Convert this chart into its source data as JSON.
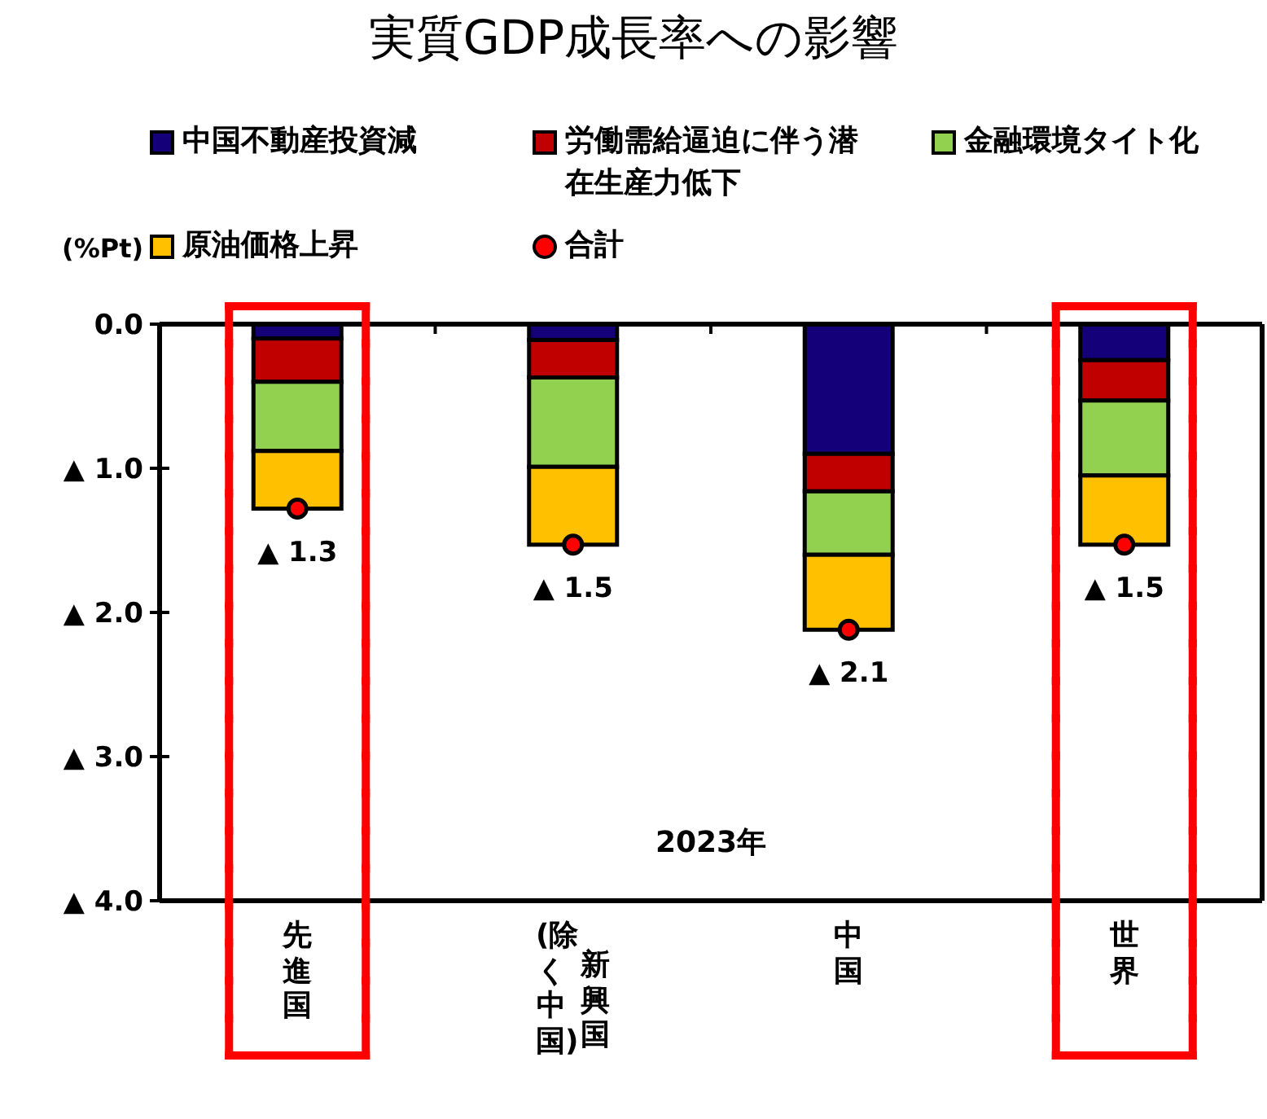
{
  "chart_data": {
    "type": "bar",
    "stacked": true,
    "title": "実質GDP成長率への影響",
    "ylabel": "(%Pt)",
    "categories": [
      "先進国",
      "新興国\n(除く中国)",
      "中国",
      "世界"
    ],
    "series": [
      {
        "name": "中国不動産投資減",
        "color": "#140078",
        "values": [
          -0.1,
          -0.11,
          -0.9,
          -0.25
        ]
      },
      {
        "name": "労働需給逼迫に伴う潜在生産力低下",
        "color": "#c00000",
        "values": [
          -0.3,
          -0.26,
          -0.26,
          -0.28
        ]
      },
      {
        "name": "金融環境タイト化",
        "color": "#92d050",
        "values": [
          -0.48,
          -0.62,
          -0.44,
          -0.52
        ]
      },
      {
        "name": "原油価格上昇",
        "color": "#ffc000",
        "values": [
          -0.4,
          -0.54,
          -0.52,
          -0.48
        ]
      },
      {
        "name": "合計",
        "type": "scatter",
        "marker": "circle",
        "color": "#ff0000",
        "x": [
          "先進国",
          "新興国\n(除く中国)",
          "中国",
          "世界"
        ],
        "values": [
          -1.28,
          -1.53,
          -2.12,
          -1.53
        ]
      }
    ],
    "ylim": [
      -4,
      0
    ],
    "yticks": [
      {
        "value": 0,
        "label": "0.0"
      },
      {
        "value": -1,
        "label": "▲ 1.0"
      },
      {
        "value": -2,
        "label": "▲ 2.0"
      },
      {
        "value": -3,
        "label": "▲ 3.0"
      },
      {
        "value": -4,
        "label": "▲ 4.0"
      }
    ],
    "annotations": [
      "2023年",
      {
        "text": "▲ 1.3",
        "x": "先進国",
        "y": -1.28
      },
      {
        "text": "▲ 1.5",
        "x": "新興国\n(除く中国)",
        "y": -1.53
      },
      {
        "text": "▲ 2.1",
        "x": "中国",
        "y": -2.12
      },
      {
        "text": "▲ 1.5",
        "x": "世界",
        "y": -1.53
      }
    ],
    "legend": "top",
    "grid": false
  }
}
